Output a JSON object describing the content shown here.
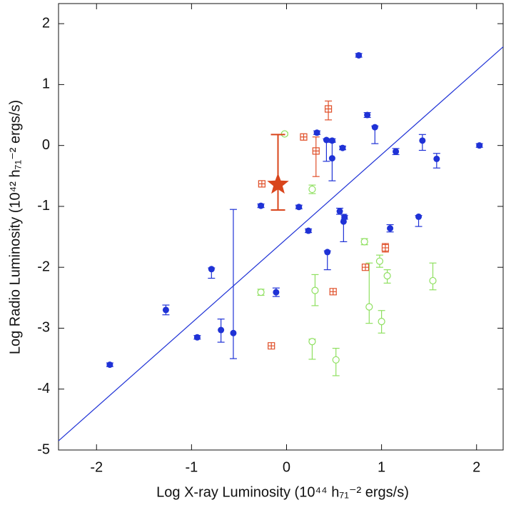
{
  "chart_data": {
    "type": "scatter",
    "xlabel": "Log X-ray Luminosity (10⁴⁴ h₇₁⁻² ergs/s)",
    "ylabel": "Log Radio Luminosity (10⁴² h₇₁⁻² ergs/s)",
    "xlim": [
      -2.4,
      2.28
    ],
    "ylim": [
      -5,
      2.33
    ],
    "xticks": [
      -2,
      -1,
      0,
      1,
      2
    ],
    "yticks": [
      -5,
      -4,
      -3,
      -2,
      -1,
      0,
      1,
      2
    ],
    "fit_line": {
      "color": "#1f32d6",
      "x": [
        -2.4,
        2.28
      ],
      "y": [
        -4.85,
        1.62
      ]
    },
    "series": [
      {
        "color": "#1f32d6",
        "marker": "filled-circle",
        "x": [
          -1.86,
          -1.27,
          -0.94,
          -0.79,
          -0.69,
          -0.56,
          -0.27,
          -0.11,
          0.13,
          0.23,
          0.32,
          0.43,
          0.42,
          0.48,
          0.48,
          0.56,
          0.59,
          0.6,
          0.61,
          0.76,
          0.85,
          0.93,
          1.09,
          1.15,
          1.39,
          1.43,
          1.58,
          2.03
        ],
        "values": [
          -3.6,
          -2.7,
          -3.15,
          -2.03,
          -3.03,
          -3.08,
          -0.99,
          -2.41,
          -1.01,
          -1.4,
          0.21,
          -1.75,
          0.09,
          0.08,
          -0.21,
          -1.08,
          -0.04,
          -1.25,
          -1.18,
          1.48,
          0.5,
          0.3,
          -1.36,
          -0.1,
          -1.17,
          0.08,
          -0.22,
          0
        ],
        "err_low": [
          0.03,
          0.08,
          0.03,
          0.15,
          0.2,
          0.42,
          0.03,
          0.07,
          0.03,
          0.03,
          0.03,
          0.29,
          0.35,
          0.03,
          0.37,
          0.05,
          0.03,
          0.33,
          0.03,
          0.03,
          0.04,
          0.27,
          0.06,
          0.05,
          0.16,
          0.16,
          0.15,
          0.03
        ],
        "err_high": [
          0.03,
          0.08,
          0.03,
          0.02,
          0.18,
          2.03,
          0.03,
          0.07,
          0.03,
          0.03,
          0.03,
          0.02,
          0.02,
          0.03,
          0.28,
          0.05,
          0.03,
          0.12,
          0.03,
          0.03,
          0.04,
          0.02,
          0.06,
          0.05,
          0.02,
          0.1,
          0.09,
          0.03
        ]
      },
      {
        "color": "#8fe060",
        "marker": "open-circle",
        "x": [
          -0.27,
          -0.02,
          0.27,
          0.27,
          0.3,
          0.52,
          0.82,
          0.87,
          0.98,
          1.0,
          1.06,
          1.54
        ],
        "values": [
          -2.41,
          0.19,
          -0.72,
          -3.22,
          -2.38,
          -3.52,
          -1.58,
          -2.65,
          -1.9,
          -2.89,
          -2.14,
          -2.22
        ],
        "err_low": [
          0.05,
          0.02,
          0.07,
          0.29,
          0.25,
          0.26,
          0.05,
          0.27,
          0.1,
          0.19,
          0.12,
          0.15
        ],
        "err_high": [
          0.05,
          0.02,
          0.07,
          0.04,
          0.26,
          0.19,
          0.05,
          0.72,
          0.1,
          0.18,
          0.1,
          0.29
        ]
      },
      {
        "color": "#e0502a",
        "marker": "open-square",
        "x": [
          -0.26,
          -0.16,
          0.18,
          0.31,
          0.44,
          0.49,
          0.83,
          1.04
        ],
        "values": [
          -0.63,
          -3.29,
          0.14,
          -0.09,
          0.6,
          -2.4,
          -2.0,
          -1.68
        ],
        "err_low": [
          0.03,
          0.03,
          0.03,
          0.42,
          0.18,
          0.05,
          0.05,
          0.07
        ],
        "err_high": [
          0.03,
          0.03,
          0.03,
          0.23,
          0.13,
          0.05,
          0.05,
          0.07
        ]
      },
      {
        "color": "#d9451c",
        "marker": "star",
        "x": [
          -0.09
        ],
        "values": [
          -0.64
        ],
        "err_low": [
          0.42
        ],
        "err_high": [
          0.82
        ]
      }
    ]
  }
}
